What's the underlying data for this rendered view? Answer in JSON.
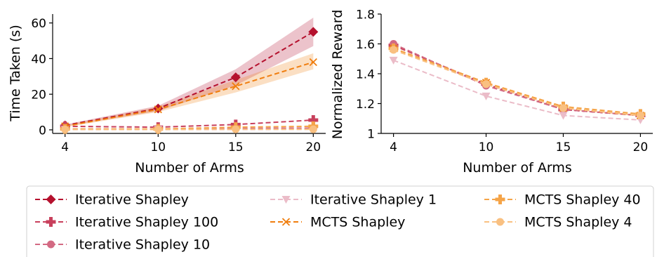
{
  "chart_data": [
    {
      "type": "line",
      "ylabel": "Time Taken (s)",
      "xlabel": "Number of Arms",
      "x": [
        4,
        10,
        15,
        20
      ],
      "xlim": [
        3.2,
        20.8
      ],
      "ylim": [
        -2,
        65
      ],
      "xticks": [
        "4",
        "10",
        "15",
        "20"
      ],
      "yticks": [
        0,
        20,
        40,
        60
      ],
      "series": [
        {
          "name": "Iterative Shapley",
          "values": [
            2.5,
            12.0,
            29.5,
            55.0
          ],
          "band": [
            [
              2.0,
              3.0
            ],
            [
              10.5,
              13.5
            ],
            [
              25.0,
              34.0
            ],
            [
              47.0,
              63.0
            ]
          ]
        },
        {
          "name": "Iterative Shapley 100",
          "values": [
            2.0,
            1.5,
            3.0,
            5.5
          ]
        },
        {
          "name": "Iterative Shapley 10",
          "values": [
            0.5,
            0.5,
            0.8,
            1.0
          ]
        },
        {
          "name": "Iterative Shapley 1",
          "values": [
            0.2,
            0.2,
            0.2,
            0.3
          ]
        },
        {
          "name": "MCTS Shapley",
          "values": [
            2.0,
            11.5,
            24.5,
            38.0
          ],
          "band": [
            [
              1.5,
              2.5
            ],
            [
              10.0,
              13.0
            ],
            [
              21.0,
              28.0
            ],
            [
              34.0,
              43.0
            ]
          ]
        },
        {
          "name": "MCTS Shapley 40",
          "values": [
            0.5,
            0.5,
            1.5,
            2.0
          ]
        },
        {
          "name": "MCTS Shapley 4",
          "values": [
            0.2,
            0.2,
            0.3,
            0.3
          ]
        }
      ]
    },
    {
      "type": "line",
      "ylabel": "Normalized Reward",
      "xlabel": "Number of Arms",
      "x": [
        4,
        10,
        15,
        20
      ],
      "xlim": [
        3.2,
        20.8
      ],
      "ylim": [
        1.0,
        1.8
      ],
      "xticks": [
        "4",
        "10",
        "15",
        "20"
      ],
      "yticks": [
        1.0,
        1.2,
        1.4,
        1.6,
        1.8
      ],
      "ytick_labels": [
        "1",
        "1.2",
        "1.4",
        "1.6",
        "1.8"
      ],
      "series": [
        {
          "name": "Iterative Shapley",
          "values": [
            1.59,
            1.33,
            1.16,
            1.12
          ]
        },
        {
          "name": "Iterative Shapley 100",
          "values": [
            1.59,
            1.33,
            1.16,
            1.12
          ]
        },
        {
          "name": "Iterative Shapley 10",
          "values": [
            1.6,
            1.32,
            1.16,
            1.12
          ]
        },
        {
          "name": "Iterative Shapley 1",
          "values": [
            1.49,
            1.25,
            1.12,
            1.09
          ]
        },
        {
          "name": "MCTS Shapley",
          "values": [
            1.57,
            1.34,
            1.17,
            1.12
          ]
        },
        {
          "name": "MCTS Shapley 40",
          "values": [
            1.57,
            1.34,
            1.18,
            1.13
          ]
        },
        {
          "name": "MCTS Shapley 4",
          "values": [
            1.56,
            1.33,
            1.17,
            1.12
          ]
        }
      ]
    }
  ],
  "styles": [
    {
      "name": "Iterative Shapley",
      "color": "#b5112e",
      "marker": "diamond"
    },
    {
      "name": "Iterative Shapley 100",
      "color": "#c8405c",
      "marker": "plus"
    },
    {
      "name": "Iterative Shapley 10",
      "color": "#d36a83",
      "marker": "circle"
    },
    {
      "name": "Iterative Shapley 1",
      "color": "#ebbcc8",
      "marker": "triangle-down"
    },
    {
      "name": "MCTS Shapley",
      "color": "#f07e0f",
      "marker": "x"
    },
    {
      "name": "MCTS Shapley 40",
      "color": "#f5a448",
      "marker": "plus"
    },
    {
      "name": "MCTS Shapley 4",
      "color": "#f9c081",
      "marker": "circle"
    }
  ],
  "legend": {
    "placement": "bottom",
    "columns": [
      [
        "Iterative Shapley",
        "Iterative Shapley 100",
        "Iterative Shapley 10"
      ],
      [
        "Iterative Shapley 1",
        "MCTS Shapley"
      ],
      [
        "MCTS Shapley 40",
        "MCTS Shapley 4"
      ]
    ]
  }
}
